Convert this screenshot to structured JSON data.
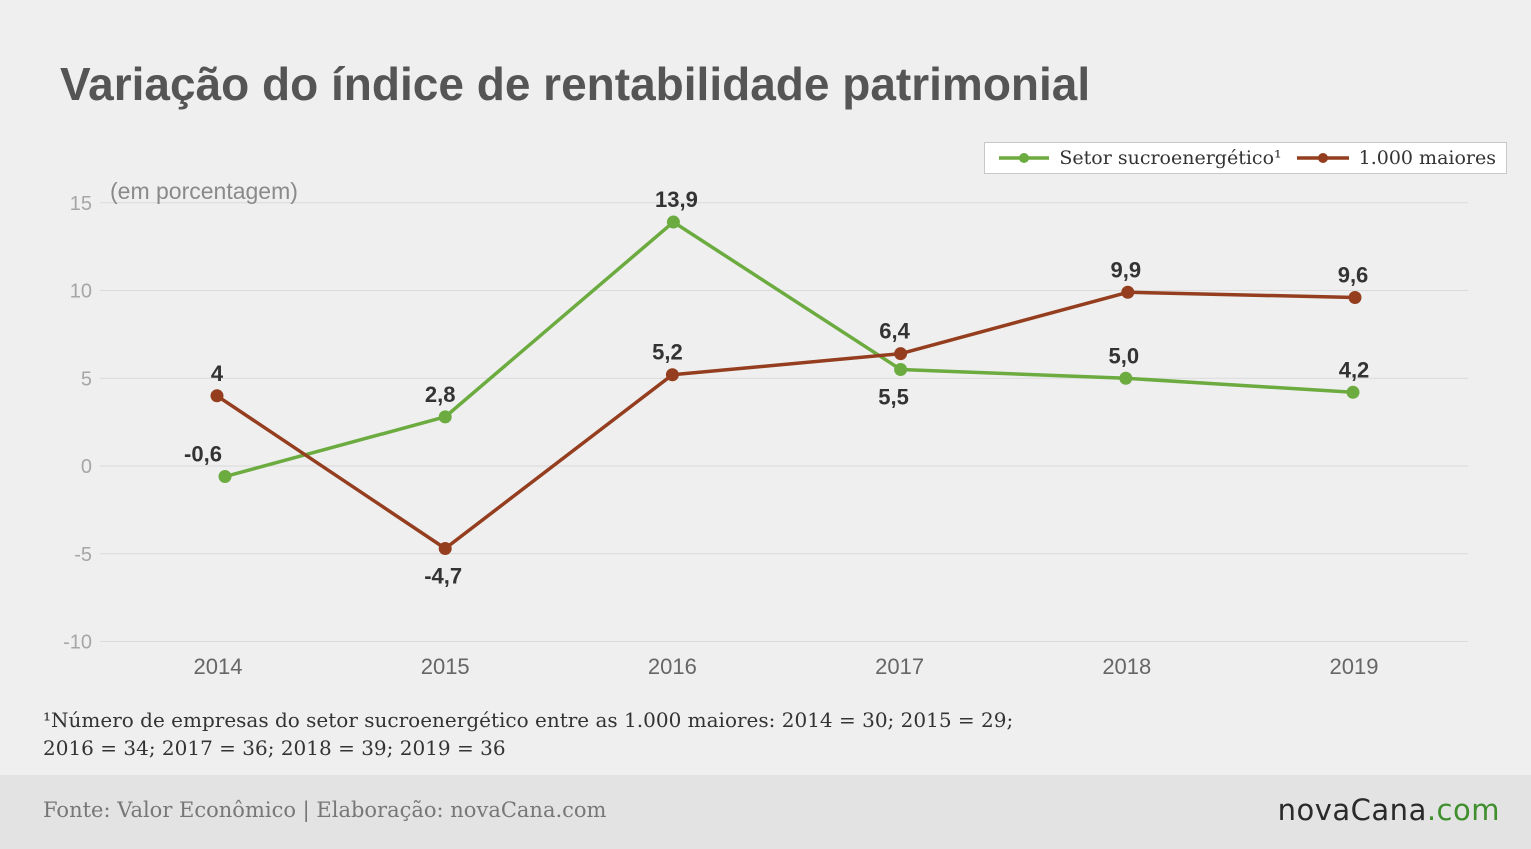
{
  "chart_data": {
    "type": "line",
    "title": "Variação do índice de rentabilidade patrimonial",
    "subtitle": "(em porcentagem)",
    "x": [
      "2014",
      "2015",
      "2016",
      "2017",
      "2018",
      "2019"
    ],
    "yticks": [
      -10,
      -5,
      0,
      5,
      10,
      15
    ],
    "ylim": [
      -10,
      15
    ],
    "grid": true,
    "legend": "top-right",
    "series": [
      {
        "name": "Setor sucroenergético¹",
        "color": "#6cab3f",
        "values": [
          -0.6,
          2.8,
          13.9,
          5.5,
          5.0,
          4.2
        ],
        "labels": [
          "-0,6",
          "2,8",
          "13,9",
          "5,5",
          "5,0",
          "4,2"
        ]
      },
      {
        "name": "1.000 maiores",
        "color": "#943e1f",
        "values": [
          4,
          -4.7,
          5.2,
          6.4,
          9.9,
          9.6
        ],
        "labels": [
          "4",
          "-4,7",
          "5,2",
          "6,4",
          "9,9",
          "9,6"
        ]
      }
    ]
  },
  "footnote": {
    "line1": "¹Número de empresas do setor sucroenergético entre as 1.000 maiores: 2014 = 30; 2015 = 29;",
    "line2": "2016 = 34; 2017 = 36; 2018 = 39; 2019 = 36"
  },
  "footer": {
    "source": "Fonte: Valor Econômico | Elaboração: novaCana.com",
    "logo": {
      "wordmark": "novaCana",
      "suffix": ".com"
    }
  }
}
